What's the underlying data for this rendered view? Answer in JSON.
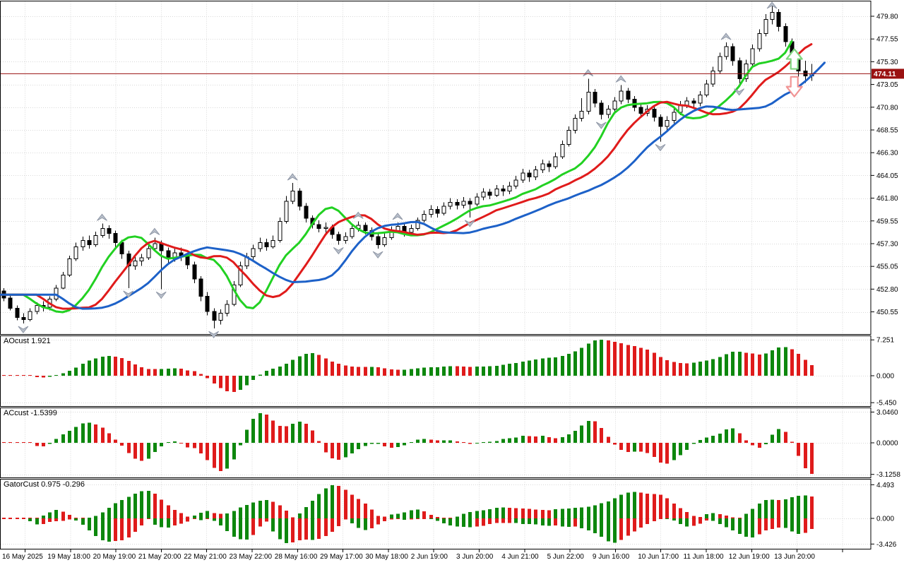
{
  "app": {
    "name": "trading-chart-terminal"
  },
  "colors": {
    "bg": "#ffffff",
    "border": "#000000",
    "grid": "#d8d8d8",
    "text": "#000000",
    "bull_body": "#ffffff",
    "bear_body": "#000000",
    "candle_outline": "#000000",
    "line_green": "#22d122",
    "line_red": "#e01b1b",
    "line_blue": "#1d61c8",
    "hist_up": "#0d870d",
    "hist_down": "#df1b1b",
    "price_line": "#9a1111",
    "price_tag_bg": "#9a1111",
    "price_tag_text": "#ffffff",
    "fractal_fill": "#b9c0cb",
    "fractal_stroke": "#8f97a6",
    "buy_arrow": "#7fd67f",
    "sell_arrow": "#f19494"
  },
  "chart_data": [
    {
      "type": "candlestick",
      "name": "main-price-chart",
      "y_axis": {
        "top_tick_value": 479.8,
        "tick_step": 2.25,
        "ticks": [
          "479.80",
          "477.55",
          "475.30",
          "473.05",
          "470.80",
          "468.55",
          "466.30",
          "464.05",
          "461.80",
          "459.55",
          "457.30",
          "455.05",
          "452.80",
          "450.55"
        ]
      },
      "x_axis": {
        "labels": [
          "16 May 2025",
          "19 May 18:00",
          "20 May 19:00",
          "21 May 20:00",
          "22 May 21:00",
          "23 May 22:00",
          "28 May 16:00",
          "29 May 17:00",
          "30 May 18:00",
          "2 Jun 19:00",
          "3 Jun 20:00",
          "4 Jun 21:00",
          "5 Jun 22:00",
          "9 Jun 16:00",
          "10 Jun 17:00",
          "11 Jun 18:00",
          "12 Jun 19:00",
          "13 Jun 20:00"
        ]
      },
      "price_line": {
        "value": 474.11,
        "label": "474.11"
      },
      "ohlc": [
        [
          452.6,
          452.9,
          451.6,
          451.9
        ],
        [
          451.9,
          452.2,
          450.7,
          450.9
        ],
        [
          450.9,
          451.2,
          449.7,
          450.0
        ],
        [
          450.0,
          450.4,
          449.4,
          449.8
        ],
        [
          449.8,
          450.9,
          449.6,
          450.6
        ],
        [
          450.6,
          451.5,
          450.3,
          451.2
        ],
        [
          451.2,
          451.6,
          450.6,
          451.0
        ],
        [
          451.0,
          452.1,
          450.7,
          451.8
        ],
        [
          451.8,
          453.2,
          451.6,
          452.9
        ],
        [
          452.9,
          454.5,
          452.8,
          454.2
        ],
        [
          454.2,
          456.1,
          454.0,
          455.8
        ],
        [
          455.8,
          457.4,
          455.6,
          457.0
        ],
        [
          457.0,
          458.0,
          456.6,
          457.6
        ],
        [
          457.6,
          458.1,
          456.8,
          457.2
        ],
        [
          457.2,
          458.5,
          457.0,
          458.1
        ],
        [
          458.1,
          459.3,
          457.9,
          458.8
        ],
        [
          458.8,
          459.1,
          457.8,
          458.3
        ],
        [
          458.3,
          458.6,
          457.0,
          457.4
        ],
        [
          457.4,
          457.7,
          455.8,
          456.3
        ],
        [
          456.3,
          456.6,
          452.9,
          455.1
        ],
        [
          455.1,
          456.2,
          454.7,
          455.6
        ],
        [
          455.6,
          456.3,
          455.1,
          455.9
        ],
        [
          455.9,
          457.1,
          455.7,
          456.8
        ],
        [
          456.8,
          457.9,
          456.5,
          457.3
        ],
        [
          457.3,
          457.6,
          452.8,
          456.6
        ],
        [
          456.6,
          456.9,
          455.3,
          455.8
        ],
        [
          455.8,
          456.8,
          455.5,
          456.4
        ],
        [
          456.4,
          456.9,
          455.6,
          456.0
        ],
        [
          456.0,
          456.3,
          454.8,
          455.2
        ],
        [
          455.2,
          455.5,
          453.4,
          453.8
        ],
        [
          453.8,
          454.1,
          451.6,
          452.1
        ],
        [
          452.1,
          452.5,
          450.2,
          450.6
        ],
        [
          450.6,
          450.9,
          448.9,
          449.7
        ],
        [
          449.7,
          450.8,
          449.3,
          450.4
        ],
        [
          450.4,
          451.7,
          450.1,
          451.3
        ],
        [
          451.3,
          453.6,
          451.1,
          453.2
        ],
        [
          453.2,
          455.5,
          453.0,
          455.1
        ],
        [
          455.1,
          456.4,
          454.8,
          456.0
        ],
        [
          456.0,
          457.2,
          455.7,
          456.8
        ],
        [
          456.8,
          457.9,
          456.5,
          457.4
        ],
        [
          457.4,
          457.8,
          456.6,
          457.0
        ],
        [
          457.0,
          458.1,
          456.8,
          457.6
        ],
        [
          457.6,
          459.9,
          457.4,
          459.5
        ],
        [
          459.5,
          462.0,
          459.3,
          461.5
        ],
        [
          461.5,
          463.3,
          461.2,
          462.5
        ],
        [
          462.5,
          462.8,
          460.6,
          461.0
        ],
        [
          461.0,
          461.3,
          459.4,
          459.8
        ],
        [
          459.8,
          460.1,
          458.8,
          459.2
        ],
        [
          459.2,
          459.6,
          458.4,
          458.8
        ],
        [
          458.8,
          459.4,
          458.3,
          458.9
        ],
        [
          458.9,
          459.2,
          457.8,
          458.2
        ],
        [
          458.2,
          458.5,
          457.2,
          457.6
        ],
        [
          457.6,
          458.4,
          457.3,
          458.0
        ],
        [
          458.0,
          459.2,
          457.8,
          458.8
        ],
        [
          458.8,
          459.5,
          458.5,
          459.1
        ],
        [
          459.1,
          459.4,
          458.2,
          458.6
        ],
        [
          458.6,
          458.9,
          457.6,
          458.0
        ],
        [
          458.0,
          458.3,
          456.8,
          457.2
        ],
        [
          457.2,
          458.3,
          457.0,
          457.9
        ],
        [
          457.9,
          459.0,
          457.7,
          458.6
        ],
        [
          458.6,
          459.4,
          458.3,
          459.0
        ],
        [
          459.0,
          459.3,
          458.0,
          458.4
        ],
        [
          458.4,
          459.2,
          458.1,
          458.8
        ],
        [
          458.8,
          459.9,
          458.6,
          459.6
        ],
        [
          459.6,
          460.6,
          459.4,
          460.2
        ],
        [
          460.2,
          461.1,
          459.9,
          460.7
        ],
        [
          460.7,
          461.0,
          459.9,
          460.3
        ],
        [
          460.3,
          461.4,
          460.1,
          461.0
        ],
        [
          461.0,
          461.8,
          460.7,
          461.4
        ],
        [
          461.4,
          461.7,
          460.7,
          461.1
        ],
        [
          461.1,
          461.9,
          460.8,
          461.5
        ],
        [
          461.5,
          461.8,
          459.9,
          461.2
        ],
        [
          461.2,
          462.3,
          461.0,
          461.9
        ],
        [
          461.9,
          462.8,
          461.6,
          462.4
        ],
        [
          462.4,
          462.7,
          461.7,
          462.1
        ],
        [
          462.1,
          463.1,
          461.9,
          462.7
        ],
        [
          462.7,
          463.1,
          462.0,
          462.5
        ],
        [
          462.5,
          463.4,
          462.2,
          463.0
        ],
        [
          463.0,
          464.0,
          462.7,
          463.6
        ],
        [
          463.6,
          464.7,
          463.3,
          464.3
        ],
        [
          464.3,
          464.6,
          463.4,
          463.9
        ],
        [
          463.9,
          465.0,
          463.6,
          464.6
        ],
        [
          464.6,
          465.6,
          464.3,
          465.2
        ],
        [
          465.2,
          465.5,
          464.4,
          464.9
        ],
        [
          464.9,
          466.3,
          464.7,
          465.9
        ],
        [
          465.9,
          467.5,
          465.7,
          467.1
        ],
        [
          467.1,
          468.9,
          466.9,
          468.5
        ],
        [
          468.5,
          470.1,
          468.2,
          469.7
        ],
        [
          469.7,
          471.7,
          469.4,
          470.4
        ],
        [
          470.4,
          473.6,
          470.1,
          472.3
        ],
        [
          472.3,
          472.6,
          470.8,
          471.2
        ],
        [
          471.2,
          471.5,
          469.6,
          470.1
        ],
        [
          470.1,
          471.0,
          469.7,
          470.6
        ],
        [
          470.6,
          471.8,
          470.3,
          471.4
        ],
        [
          471.4,
          473.0,
          471.1,
          472.4
        ],
        [
          472.4,
          472.7,
          471.2,
          471.6
        ],
        [
          471.6,
          471.9,
          470.4,
          470.8
        ],
        [
          470.8,
          471.1,
          469.8,
          470.2
        ],
        [
          470.2,
          471.0,
          469.9,
          470.6
        ],
        [
          470.6,
          470.9,
          469.4,
          469.8
        ],
        [
          469.8,
          470.1,
          467.4,
          468.9
        ],
        [
          468.9,
          469.9,
          468.5,
          469.5
        ],
        [
          469.5,
          470.7,
          469.2,
          470.3
        ],
        [
          470.3,
          471.4,
          470.0,
          471.0
        ],
        [
          471.0,
          471.8,
          470.7,
          471.4
        ],
        [
          471.4,
          471.7,
          470.6,
          471.2
        ],
        [
          471.2,
          472.4,
          470.9,
          472.0
        ],
        [
          472.0,
          473.5,
          471.8,
          473.1
        ],
        [
          473.1,
          474.8,
          472.8,
          474.4
        ],
        [
          474.4,
          476.2,
          474.1,
          475.8
        ],
        [
          475.8,
          477.2,
          475.5,
          476.8
        ],
        [
          476.8,
          477.1,
          474.9,
          475.4
        ],
        [
          475.4,
          475.7,
          472.9,
          473.6
        ],
        [
          473.6,
          475.5,
          473.3,
          475.1
        ],
        [
          475.1,
          477.0,
          474.8,
          476.6
        ],
        [
          476.6,
          478.5,
          476.3,
          478.1
        ],
        [
          478.1,
          480.0,
          477.8,
          479.5
        ],
        [
          479.5,
          480.9,
          479.0,
          480.2
        ],
        [
          480.2,
          480.5,
          478.3,
          478.8
        ],
        [
          478.8,
          479.1,
          476.8,
          477.3
        ],
        [
          477.3,
          477.6,
          475.4,
          475.9
        ],
        [
          475.9,
          476.2,
          473.8,
          474.4
        ],
        [
          474.4,
          475.4,
          473.2,
          473.9
        ],
        [
          473.9,
          475.1,
          473.4,
          474.11
        ]
      ],
      "overlays": [
        {
          "name": "alligator-lips",
          "type": "smma",
          "period": 5,
          "shift": 3,
          "color_key": "line_green"
        },
        {
          "name": "alligator-teeth",
          "type": "smma",
          "period": 8,
          "shift": 5,
          "color_key": "line_red"
        },
        {
          "name": "alligator-jaw",
          "type": "smma",
          "period": 13,
          "shift": 8,
          "color_key": "line_blue"
        }
      ],
      "fractals": {
        "enabled": true
      },
      "markers": [
        {
          "name": "buy-signal-arrow",
          "dir": "up",
          "bar": 120.4,
          "price": 474.45
        },
        {
          "name": "sell-signal-arrow",
          "dir": "down",
          "bar": 120.4,
          "price": 473.95
        }
      ]
    },
    {
      "type": "bar",
      "name": "AOcust",
      "title": "AOcust 1.921",
      "value": 1.921,
      "derived": "awesome-oscillator",
      "y_ticks": [
        "7.251",
        "0.000",
        "-5.450"
      ]
    },
    {
      "type": "bar",
      "name": "ACcust",
      "title": "ACcust -1.5399",
      "value": -1.5399,
      "derived": "accelerator-oscillator",
      "y_ticks": [
        "3.0460",
        "0.0000",
        "-3.1258"
      ]
    },
    {
      "type": "bar",
      "name": "GatorCust",
      "title": "GatorCust 0.975 -0.296",
      "values": [
        0.975,
        -0.296
      ],
      "derived": "gator-oscillator",
      "y_ticks": [
        "4.493",
        "0.000",
        "-3.426"
      ]
    }
  ]
}
